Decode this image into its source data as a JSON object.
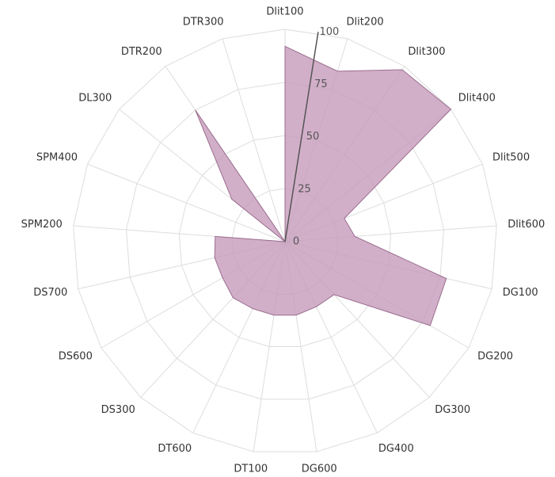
{
  "chart_data": {
    "type": "radar",
    "categories": [
      "Dlit100",
      "Dlit200",
      "Dlit300",
      "Dlit400",
      "Dlit500",
      "Dlit600",
      "DG100",
      "DG200",
      "DG300",
      "DG400",
      "DG600",
      "DT100",
      "DT600",
      "DS300",
      "DS600",
      "DS700",
      "SPM200",
      "SPM400",
      "DL300",
      "DTR200",
      "DTR300"
    ],
    "values": [
      92,
      84,
      98,
      100,
      30,
      33,
      78,
      79,
      34,
      34,
      35,
      35,
      35,
      36,
      34,
      34,
      33,
      0,
      32,
      75,
      0
    ],
    "color": "#c79bbb",
    "ylim": [
      0,
      100
    ],
    "yticks": [
      0,
      25,
      50,
      75,
      100
    ],
    "grid": true
  }
}
